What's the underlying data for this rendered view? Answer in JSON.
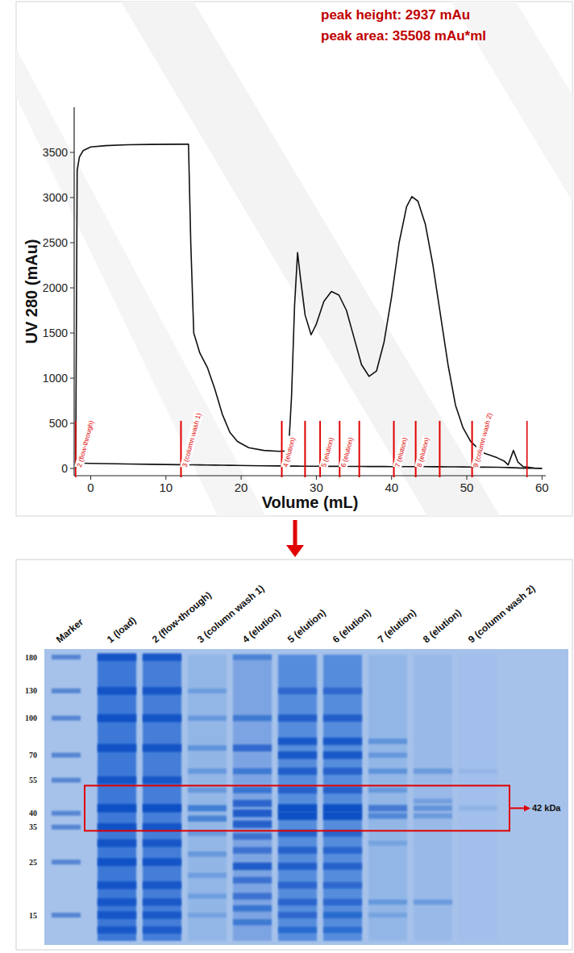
{
  "chart_data": {
    "type": "line",
    "annotations": [
      "peak height: 2937 mAu",
      "peak area: 35508 mAu*ml"
    ],
    "x_label": "Volume (mL)",
    "y_label": "UV 280 (mAu)",
    "x": [
      -2,
      -1.8,
      -1.5,
      -1,
      0,
      2,
      5,
      8,
      12,
      13,
      13.3,
      13.7,
      14.5,
      15.5,
      16.5,
      17.5,
      18.5,
      19.5,
      21,
      23,
      25,
      26.3,
      26.7,
      27.1,
      27.5,
      27.9,
      28.5,
      29.3,
      30,
      31,
      32,
      33,
      34,
      35,
      36,
      37,
      38,
      39,
      40,
      41,
      42,
      42.7,
      43.5,
      44.5,
      45.5,
      46.5,
      47.5,
      48.5,
      49.5,
      50.5,
      52,
      54,
      55,
      55.5,
      56.2,
      56.8,
      57.5,
      59,
      60
    ],
    "series": [
      {
        "color": "#111111",
        "values": [
          0,
          3300,
          3450,
          3520,
          3560,
          3575,
          3585,
          3588,
          3590,
          3590,
          2500,
          1500,
          1280,
          1120,
          880,
          600,
          400,
          300,
          230,
          200,
          190,
          195,
          800,
          1800,
          2390,
          2100,
          1700,
          1480,
          1600,
          1850,
          1960,
          1920,
          1750,
          1450,
          1150,
          1020,
          1080,
          1400,
          1900,
          2500,
          2900,
          3010,
          2960,
          2700,
          2250,
          1700,
          1150,
          700,
          450,
          300,
          180,
          120,
          80,
          40,
          200,
          70,
          20,
          5,
          0
        ]
      },
      {
        "color": "#111111",
        "values": [
          60,
          60,
          59,
          58,
          56,
          54,
          50,
          46,
          42,
          41,
          41,
          40,
          39,
          38,
          37,
          36,
          35,
          34,
          32,
          30,
          28,
          27,
          26,
          26,
          26,
          25,
          25,
          25,
          25,
          24,
          24,
          24,
          23,
          23,
          23,
          22,
          22,
          22,
          21,
          21,
          21,
          20,
          20,
          20,
          19,
          19,
          18,
          18,
          17,
          16,
          15,
          14,
          12,
          10,
          8,
          6,
          4,
          2,
          0
        ]
      }
    ],
    "xlim": [
      -2.2,
      60.5
    ],
    "xticks": [
      0,
      10,
      20,
      30,
      40,
      50,
      60
    ],
    "ylim": [
      -80,
      4000
    ],
    "yticks": [
      0,
      500,
      1000,
      1500,
      2000,
      2500,
      3000,
      3500
    ],
    "fractions": [
      {
        "from": -2,
        "to": 12,
        "label": "2 (flow-through)"
      },
      {
        "from": 12,
        "to": 25.4,
        "label": "3 (column wash 1)"
      },
      {
        "from": 25.4,
        "to": 28.5,
        "label": "4 (elution)"
      },
      {
        "from": 28.5,
        "to": 30.5,
        "label": null
      },
      {
        "from": 30.5,
        "to": 33.1,
        "label": "5 (elution)"
      },
      {
        "from": 33.1,
        "to": 35.7,
        "label": "6 (elution)"
      },
      {
        "from": 35.7,
        "to": 40.3,
        "label": null
      },
      {
        "from": 40.3,
        "to": 43.2,
        "label": "7 (elution)"
      },
      {
        "from": 43.2,
        "to": 46.4,
        "label": "8 (elution)"
      },
      {
        "from": 46.4,
        "to": 50.7,
        "label": null
      },
      {
        "from": 50.7,
        "to": 58,
        "label": "9 (column wash 2)"
      }
    ]
  },
  "gel": {
    "marker_label": "Marker",
    "marker_kda": [
      180,
      130,
      100,
      70,
      55,
      40,
      35,
      25,
      15
    ],
    "target": {
      "value": 42,
      "label": "42 kDa"
    },
    "lanes": [
      {
        "label": "1 (load)",
        "smear": 0.75,
        "bands": [
          {
            "kda": 180,
            "intensity": 0.9
          },
          {
            "kda": 130,
            "intensity": 0.9
          },
          {
            "kda": 100,
            "intensity": 0.95
          },
          {
            "kda": 75,
            "intensity": 0.95
          },
          {
            "kda": 55,
            "intensity": 0.9
          },
          {
            "kda": 42,
            "intensity": 1
          },
          {
            "kda": 35,
            "intensity": 0.95
          },
          {
            "kda": 30,
            "intensity": 0.9
          },
          {
            "kda": 25,
            "intensity": 0.95
          },
          {
            "kda": 20,
            "intensity": 0.9
          },
          {
            "kda": 17,
            "intensity": 0.85
          },
          {
            "kda": 15,
            "intensity": 0.85
          },
          {
            "kda": 13,
            "intensity": 0.8
          }
        ]
      },
      {
        "label": "2 (flow-through)",
        "smear": 0.7,
        "bands": [
          {
            "kda": 180,
            "intensity": 0.85
          },
          {
            "kda": 130,
            "intensity": 0.85
          },
          {
            "kda": 100,
            "intensity": 0.9
          },
          {
            "kda": 75,
            "intensity": 0.9
          },
          {
            "kda": 55,
            "intensity": 0.85
          },
          {
            "kda": 42,
            "intensity": 1
          },
          {
            "kda": 35,
            "intensity": 0.9
          },
          {
            "kda": 30,
            "intensity": 0.85
          },
          {
            "kda": 25,
            "intensity": 0.9
          },
          {
            "kda": 20,
            "intensity": 0.85
          },
          {
            "kda": 17,
            "intensity": 0.8
          },
          {
            "kda": 15,
            "intensity": 0.8
          },
          {
            "kda": 13,
            "intensity": 0.75
          }
        ]
      },
      {
        "label": "3 (column wash 1)",
        "smear": 0.12,
        "bands": [
          {
            "kda": 130,
            "intensity": 0.25
          },
          {
            "kda": 100,
            "intensity": 0.3
          },
          {
            "kda": 75,
            "intensity": 0.35
          },
          {
            "kda": 60,
            "intensity": 0.3
          },
          {
            "kda": 50,
            "intensity": 0.3
          },
          {
            "kda": 42,
            "intensity": 0.55
          },
          {
            "kda": 38,
            "intensity": 0.5
          },
          {
            "kda": 33,
            "intensity": 0.3
          },
          {
            "kda": 27,
            "intensity": 0.3
          },
          {
            "kda": 22,
            "intensity": 0.25
          },
          {
            "kda": 18,
            "intensity": 0.25
          },
          {
            "kda": 15,
            "intensity": 0.2
          }
        ]
      },
      {
        "label": "4 (elution)",
        "smear": 0.3,
        "bands": [
          {
            "kda": 180,
            "intensity": 0.4
          },
          {
            "kda": 100,
            "intensity": 0.5
          },
          {
            "kda": 75,
            "intensity": 0.7
          },
          {
            "kda": 60,
            "intensity": 0.5
          },
          {
            "kda": 50,
            "intensity": 0.55
          },
          {
            "kda": 44,
            "intensity": 0.75
          },
          {
            "kda": 40,
            "intensity": 0.85
          },
          {
            "kda": 36,
            "intensity": 0.8
          },
          {
            "kda": 32,
            "intensity": 0.6
          },
          {
            "kda": 28,
            "intensity": 0.6
          },
          {
            "kda": 24,
            "intensity": 0.85
          },
          {
            "kda": 21,
            "intensity": 0.6
          },
          {
            "kda": 18,
            "intensity": 0.6
          },
          {
            "kda": 16,
            "intensity": 0.55
          },
          {
            "kda": 14,
            "intensity": 0.5
          }
        ]
      },
      {
        "label": "5 (elution)",
        "smear": 0.55,
        "bands": [
          {
            "kda": 130,
            "intensity": 0.6
          },
          {
            "kda": 100,
            "intensity": 0.75
          },
          {
            "kda": 80,
            "intensity": 0.85
          },
          {
            "kda": 70,
            "intensity": 0.85
          },
          {
            "kda": 60,
            "intensity": 0.75
          },
          {
            "kda": 50,
            "intensity": 0.7
          },
          {
            "kda": 42,
            "intensity": 1
          },
          {
            "kda": 39,
            "intensity": 1
          },
          {
            "kda": 33,
            "intensity": 0.7
          },
          {
            "kda": 28,
            "intensity": 0.7
          },
          {
            "kda": 24,
            "intensity": 0.75
          },
          {
            "kda": 20,
            "intensity": 0.65
          },
          {
            "kda": 17,
            "intensity": 0.65
          },
          {
            "kda": 15,
            "intensity": 0.6
          },
          {
            "kda": 13,
            "intensity": 0.55
          }
        ]
      },
      {
        "label": "6 (elution)",
        "smear": 0.55,
        "bands": [
          {
            "kda": 130,
            "intensity": 0.6
          },
          {
            "kda": 100,
            "intensity": 0.75
          },
          {
            "kda": 80,
            "intensity": 0.85
          },
          {
            "kda": 70,
            "intensity": 0.85
          },
          {
            "kda": 60,
            "intensity": 0.7
          },
          {
            "kda": 50,
            "intensity": 0.7
          },
          {
            "kda": 42,
            "intensity": 1
          },
          {
            "kda": 39,
            "intensity": 1
          },
          {
            "kda": 33,
            "intensity": 0.65
          },
          {
            "kda": 28,
            "intensity": 0.65
          },
          {
            "kda": 24,
            "intensity": 0.7
          },
          {
            "kda": 20,
            "intensity": 0.6
          },
          {
            "kda": 17,
            "intensity": 0.6
          },
          {
            "kda": 15,
            "intensity": 0.55
          },
          {
            "kda": 13,
            "intensity": 0.5
          }
        ]
      },
      {
        "label": "7 (elution)",
        "smear": 0.12,
        "bands": [
          {
            "kda": 80,
            "intensity": 0.35
          },
          {
            "kda": 70,
            "intensity": 0.3
          },
          {
            "kda": 60,
            "intensity": 0.35
          },
          {
            "kda": 50,
            "intensity": 0.3
          },
          {
            "kda": 42,
            "intensity": 0.6
          },
          {
            "kda": 39,
            "intensity": 0.45
          },
          {
            "kda": 30,
            "intensity": 0.2
          },
          {
            "kda": 17,
            "intensity": 0.3
          },
          {
            "kda": 15,
            "intensity": 0.2
          }
        ]
      },
      {
        "label": "8 (elution)",
        "smear": 0.08,
        "bands": [
          {
            "kda": 60,
            "intensity": 0.3
          },
          {
            "kda": 45,
            "intensity": 0.25
          },
          {
            "kda": 42,
            "intensity": 0.35
          },
          {
            "kda": 39,
            "intensity": 0.3
          },
          {
            "kda": 17,
            "intensity": 0.3
          }
        ]
      },
      {
        "label": "9 (column wash 2)",
        "smear": 0.03,
        "bands": [
          {
            "kda": 60,
            "intensity": 0.08
          },
          {
            "kda": 42,
            "intensity": 0.12
          }
        ]
      }
    ]
  }
}
